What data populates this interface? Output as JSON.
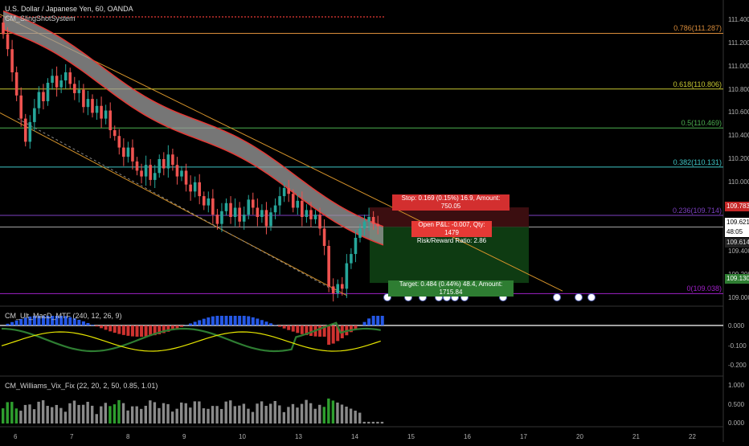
{
  "header": {
    "title": "U.S. Dollar / Japanese Yen, 60, OANDA",
    "indicator": "CM_SlingShotSystem"
  },
  "price_axis": {
    "ticks": [
      "111.400",
      "111.200",
      "111.000",
      "110.800",
      "110.600",
      "110.400",
      "110.200",
      "110.000",
      "109.800",
      "109.600",
      "109.400",
      "109.200",
      "109.000"
    ],
    "badges": {
      "stop": "109.783",
      "current": "109.621",
      "countdown": "48:05",
      "low": "109.614",
      "target": "109.130"
    }
  },
  "fib_levels": [
    {
      "label": "0.786(111.287)",
      "price": 111.287,
      "color": "#d98c3a"
    },
    {
      "label": "0.618(110.806)",
      "price": 110.806,
      "color": "#c8c832"
    },
    {
      "label": "0.5(110.469)",
      "price": 110.469,
      "color": "#4caf50"
    },
    {
      "label": "0.382(110.131)",
      "price": 110.131,
      "color": "#3fc6c6"
    },
    {
      "label": "0.236(109.714)",
      "price": 109.714,
      "color": "#7b3fbf"
    },
    {
      "label": "0(109.038)",
      "price": 109.038,
      "color": "#a020c8"
    }
  ],
  "position": {
    "stop_label": "Stop: 0.169 (0.15%) 16.9, Amount: 750.05",
    "pnl_label": "Open P&L: -0.007, Qty: 1479",
    "rr_label": "Risk/Reward Ratio: 2.86",
    "target_label": "Target: 0.484 (0.44%) 48.4, Amount: 1715.84",
    "entry": 109.614,
    "stop": 109.783,
    "target": 109.13
  },
  "time_axis": [
    "6",
    "7",
    "8",
    "9",
    "10",
    "13",
    "14",
    "15",
    "16",
    "17",
    "20",
    "21",
    "22"
  ],
  "macd": {
    "title": "CM_Ult_MacD_MTF (240, 12, 26, 9)",
    "ticks": [
      "0.000",
      "-0.100",
      "-0.200"
    ]
  },
  "vix": {
    "title": "CM_Williams_Vix_Fix (22, 20, 2, 50, 0.85, 1.01)",
    "ticks": [
      "1.000",
      "0.500",
      "0.000"
    ]
  },
  "colors": {
    "bull": "#26a69a",
    "bear": "#ef5350",
    "band": "#9e9e9e",
    "band_edge": "#e53935",
    "channel": "#d4922a",
    "target_zone": "#0e3b12",
    "stop_zone": "#3b0e10"
  },
  "chart_data": {
    "type": "candlestick",
    "symbol": "USDJPY",
    "timeframe": "60",
    "ylim": [
      108.95,
      111.45
    ],
    "closes": [
      111.28,
      111.15,
      110.95,
      110.75,
      110.55,
      110.35,
      110.52,
      110.64,
      110.78,
      110.7,
      110.86,
      110.92,
      110.82,
      110.88,
      110.95,
      110.85,
      110.77,
      110.8,
      110.65,
      110.72,
      110.6,
      110.66,
      110.55,
      110.62,
      110.45,
      110.4,
      110.3,
      110.22,
      110.3,
      110.18,
      110.1,
      110.05,
      110.15,
      110.02,
      110.08,
      110.2,
      110.12,
      110.24,
      110.15,
      110.05,
      110.1,
      109.98,
      109.92,
      110.0,
      109.88,
      109.8,
      109.86,
      109.72,
      109.64,
      109.75,
      109.82,
      109.7,
      109.78,
      109.66,
      109.72,
      109.85,
      109.78,
      109.7,
      109.76,
      109.62,
      109.74,
      109.8,
      109.88,
      109.95,
      109.9,
      109.78,
      109.84,
      109.7,
      109.76,
      109.68,
      109.72,
      109.6,
      109.45,
      109.1,
      109.04,
      109.12,
      109.08,
      109.3,
      109.38,
      109.52,
      109.6,
      109.66,
      109.7,
      109.64,
      109.62
    ]
  }
}
